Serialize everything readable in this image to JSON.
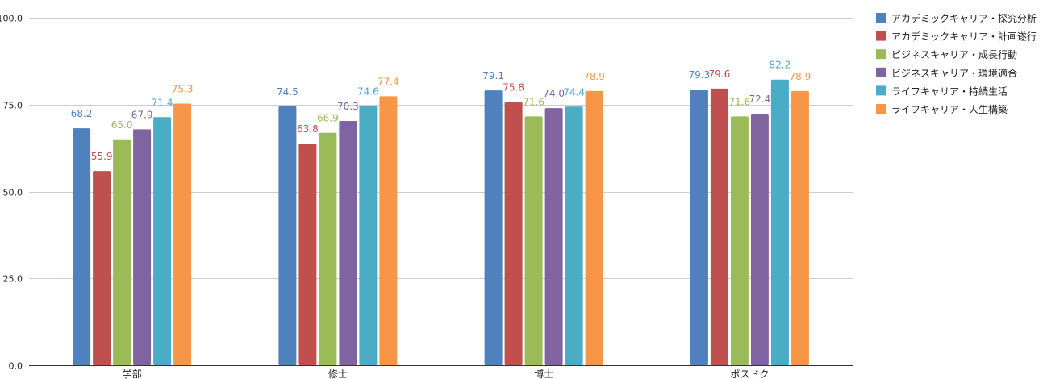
{
  "chart_data": {
    "type": "bar",
    "title": "",
    "xlabel": "",
    "ylabel": "",
    "ylim": [
      0,
      100
    ],
    "yticks": [
      0,
      25,
      50,
      75,
      100
    ],
    "ytick_labels": [
      "0.0",
      "25.0",
      "50.0",
      "75.0",
      "100.0"
    ],
    "grid": true,
    "legend_position": "right",
    "categories": [
      "学部",
      "修士",
      "博士",
      "ポスドク"
    ],
    "series": [
      {
        "name": "アカデミックキャリア・探究分析",
        "color": "#4f81bd",
        "values": [
          68.2,
          74.5,
          79.1,
          79.3
        ],
        "labels": [
          "68.2",
          "74.5",
          "79.1",
          "79.3"
        ]
      },
      {
        "name": "アカデミックキャリア・計画遂行",
        "color": "#c0504d",
        "values": [
          55.9,
          63.8,
          75.8,
          79.6
        ],
        "labels": [
          "55.9",
          "63.8",
          "75.8",
          "79.6"
        ]
      },
      {
        "name": "ビジネスキャリア・成長行動",
        "color": "#9bbb59",
        "values": [
          65.0,
          66.9,
          71.6,
          71.6
        ],
        "labels": [
          "65.0",
          "66.9",
          "71.6",
          "71.6"
        ]
      },
      {
        "name": "ビジネスキャリア・環境適合",
        "color": "#8064a2",
        "values": [
          67.9,
          70.3,
          74.0,
          72.4
        ],
        "labels": [
          "67.9",
          "70.3",
          "74.0",
          "72.4"
        ]
      },
      {
        "name": "ライフキャリア・持続生活",
        "color": "#4bacc6",
        "values": [
          71.4,
          74.6,
          74.4,
          82.2
        ],
        "labels": [
          "71.4",
          "74.6",
          "74.4",
          "82.2"
        ]
      },
      {
        "name": "ライフキャリア・人生構築",
        "color": "#f79646",
        "values": [
          75.3,
          77.4,
          78.9,
          78.9
        ],
        "labels": [
          "75.3",
          "77.4",
          "78.9",
          "78.9"
        ]
      }
    ]
  }
}
